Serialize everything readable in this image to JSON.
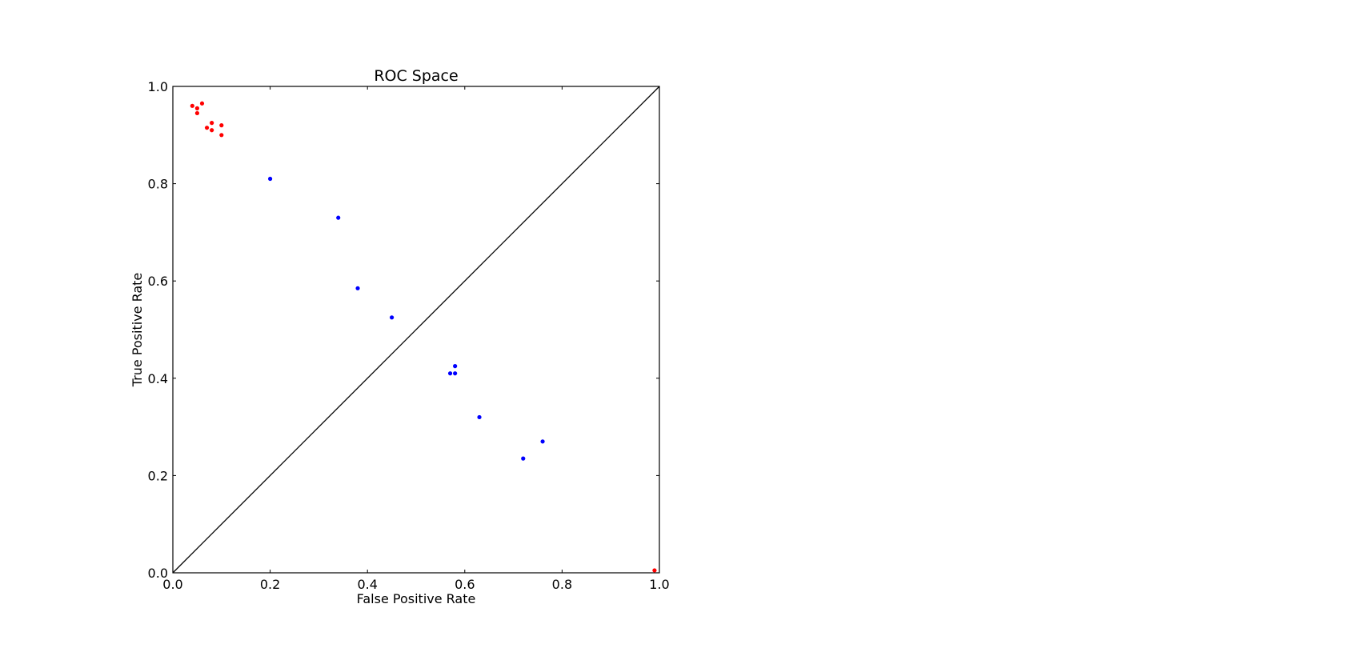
{
  "chart_data": {
    "type": "scatter",
    "title": "ROC Space",
    "xlabel": "False Positive Rate",
    "ylabel": "True Positive Rate",
    "xlim": [
      0.0,
      1.0
    ],
    "ylim": [
      0.0,
      1.0
    ],
    "xticks": [
      "0.0",
      "0.2",
      "0.4",
      "0.6",
      "0.8",
      "1.0"
    ],
    "yticks": [
      "0.0",
      "0.2",
      "0.4",
      "0.6",
      "0.8",
      "1.0"
    ],
    "grid": false,
    "reference_line": {
      "type": "diagonal",
      "from": [
        0.0,
        0.0
      ],
      "to": [
        1.0,
        1.0
      ],
      "color": "#000000"
    },
    "series": [
      {
        "color": "#ff0000",
        "points": [
          {
            "x": 0.04,
            "y": 0.96
          },
          {
            "x": 0.05,
            "y": 0.955
          },
          {
            "x": 0.05,
            "y": 0.945
          },
          {
            "x": 0.06,
            "y": 0.965
          },
          {
            "x": 0.07,
            "y": 0.915
          },
          {
            "x": 0.08,
            "y": 0.925
          },
          {
            "x": 0.08,
            "y": 0.91
          },
          {
            "x": 0.1,
            "y": 0.92
          },
          {
            "x": 0.1,
            "y": 0.9
          },
          {
            "x": 0.99,
            "y": 0.005
          }
        ]
      },
      {
        "color": "#0000ff",
        "points": [
          {
            "x": 0.2,
            "y": 0.81
          },
          {
            "x": 0.34,
            "y": 0.73
          },
          {
            "x": 0.38,
            "y": 0.585
          },
          {
            "x": 0.45,
            "y": 0.525
          },
          {
            "x": 0.57,
            "y": 0.41
          },
          {
            "x": 0.58,
            "y": 0.41
          },
          {
            "x": 0.58,
            "y": 0.425
          },
          {
            "x": 0.63,
            "y": 0.32
          },
          {
            "x": 0.72,
            "y": 0.235
          },
          {
            "x": 0.76,
            "y": 0.27
          }
        ]
      }
    ]
  }
}
